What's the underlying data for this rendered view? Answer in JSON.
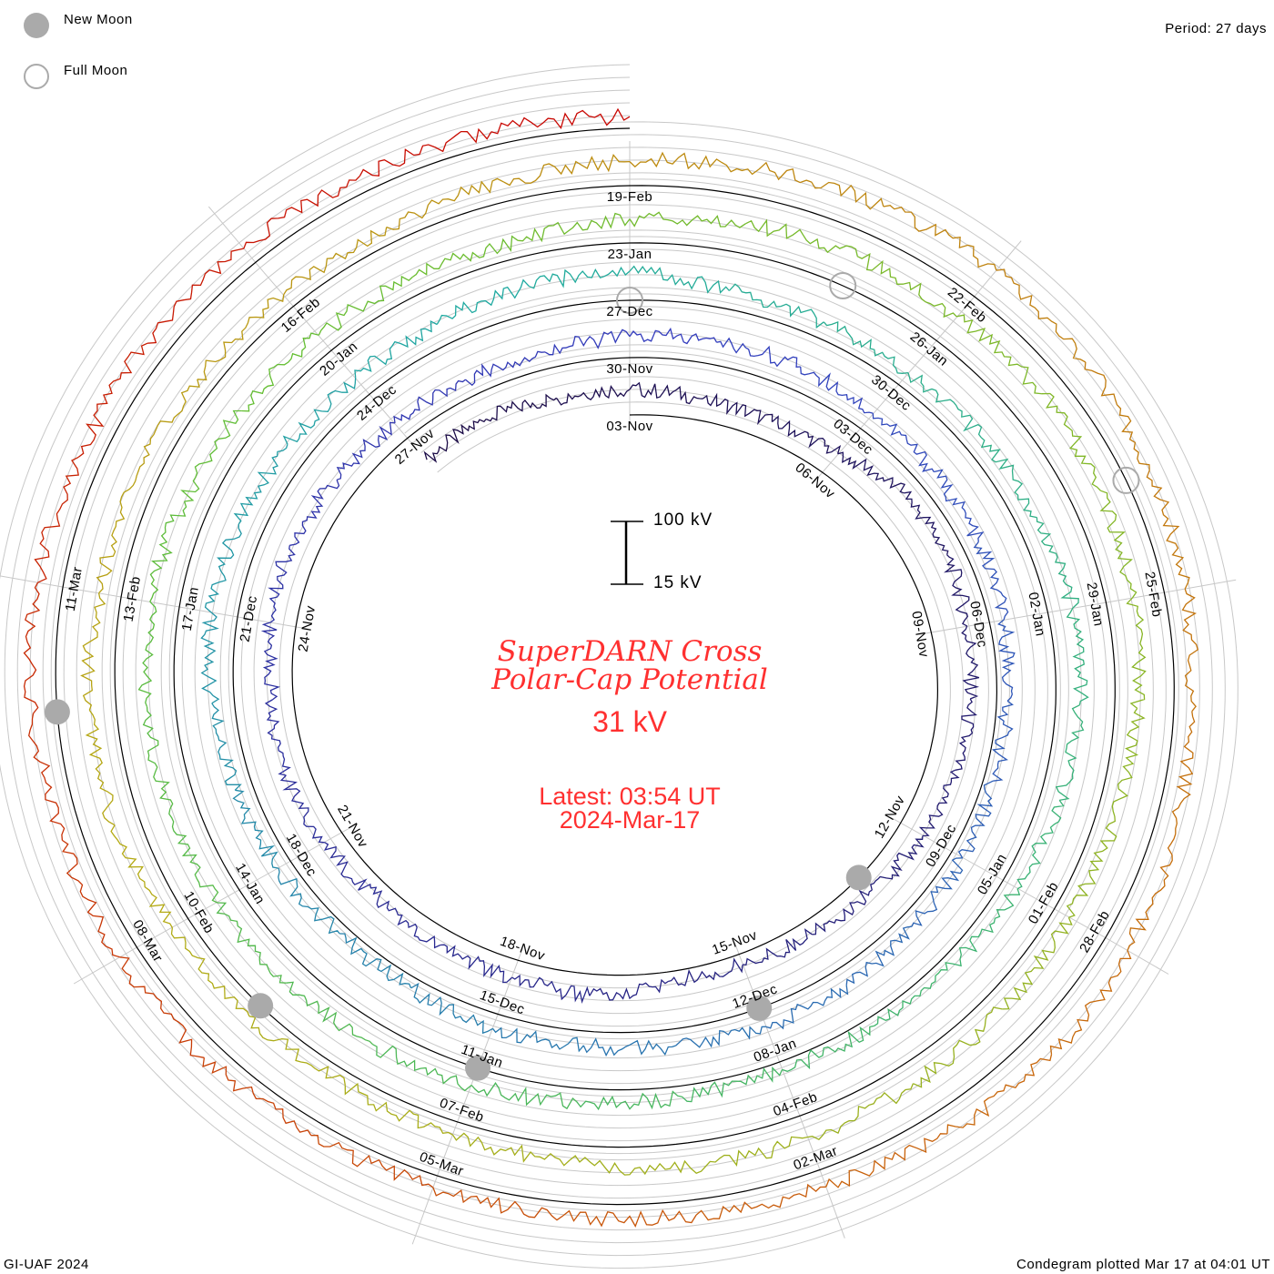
{
  "legend": {
    "new_moon": "New Moon",
    "full_moon": "Full Moon"
  },
  "period": "Period: 27 days",
  "footer_left": "GI-UAF 2024",
  "footer_right": "Condegram plotted Mar 17 at 04:01 UT",
  "scale": {
    "top": "100 kV",
    "bottom": "15 kV"
  },
  "title_line1": "SuperDARN Cross",
  "title_line2": "Polar-Cap Potential",
  "current_value": "31 kV",
  "latest_time": "Latest: 03:54 UT",
  "latest_date": "2024-Mar-17",
  "colors": {
    "title": "#ff3030",
    "moon": "#aaaaaa",
    "grid": "#c8c8c8"
  },
  "chart_data": {
    "type": "line",
    "title": "SuperDARN Cross Polar-Cap Potential",
    "ylabel": "kV",
    "period_days": 27,
    "start_label_day": "03-Nov",
    "ylim": [
      15,
      100
    ],
    "tick_labels": [
      "03-Nov",
      "06-Nov",
      "09-Nov",
      "12-Nov",
      "15-Nov",
      "18-Nov",
      "21-Nov",
      "24-Nov",
      "27-Nov",
      "30-Nov",
      "03-Dec",
      "06-Dec",
      "09-Dec",
      "12-Dec",
      "15-Dec",
      "18-Dec",
      "21-Dec",
      "24-Dec",
      "27-Dec",
      "30-Dec",
      "02-Jan",
      "05-Jan",
      "08-Jan",
      "11-Jan",
      "14-Jan",
      "17-Jan",
      "20-Jan",
      "23-Jan",
      "26-Jan",
      "29-Jan",
      "01-Feb",
      "04-Feb",
      "07-Feb",
      "10-Feb",
      "13-Feb",
      "16-Feb",
      "19-Feb",
      "22-Feb",
      "25-Feb",
      "28-Feb",
      "02-Mar",
      "05-Mar",
      "08-Mar",
      "11-Mar"
    ],
    "tick_interval_days": 3,
    "data_start_day": -3,
    "daily_values_kV": [
      55,
      58,
      52,
      50,
      45,
      42,
      48,
      70,
      72,
      65,
      60,
      55,
      50,
      40,
      35,
      30,
      28,
      45,
      40,
      38,
      36,
      42,
      48,
      44,
      50,
      55,
      45,
      42,
      40,
      38,
      44,
      46,
      48,
      42,
      40,
      38,
      35,
      30,
      28,
      32,
      34,
      40,
      42,
      38,
      35,
      36,
      30,
      28,
      34,
      40,
      46,
      52,
      50,
      48,
      45,
      46,
      52,
      55,
      40,
      38,
      36,
      40,
      44,
      50,
      48,
      42,
      38,
      30,
      28,
      26,
      30,
      34,
      40,
      44,
      48,
      50,
      52,
      54,
      56,
      50,
      46,
      42,
      40,
      38,
      48,
      56,
      60,
      58,
      62,
      58,
      52,
      46,
      40,
      38,
      42,
      44,
      46,
      50,
      36,
      34,
      32,
      36,
      40,
      50,
      52,
      46,
      42,
      40,
      36,
      38,
      42,
      48,
      54,
      58,
      62,
      56,
      50,
      44,
      40,
      46,
      50,
      54,
      48,
      40,
      36,
      34,
      32,
      36,
      40,
      42,
      44,
      48,
      50,
      46,
      44,
      40,
      38,
      34,
      31
    ],
    "new_moons_day": [
      10,
      39,
      69,
      98,
      128
    ],
    "full_moons_day": [
      54,
      83,
      113
    ]
  }
}
